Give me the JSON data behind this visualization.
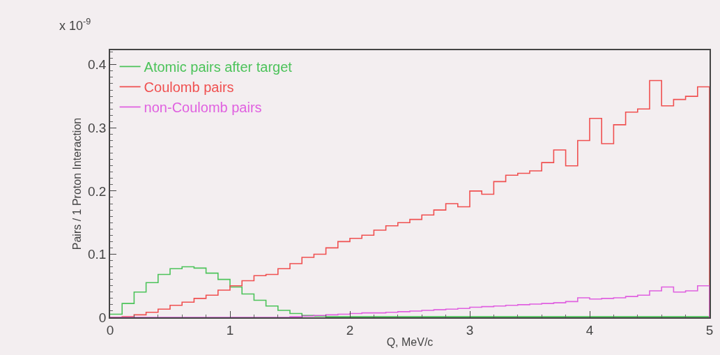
{
  "chart_data": {
    "type": "step",
    "xlabel": "Q, MeV/c",
    "ylabel": "Pairs / 1 Proton Interaction",
    "annotations": [
      "x 10$^{-9}$"
    ],
    "xlim": [
      0,
      5
    ],
    "ylim": [
      0,
      0.423
    ],
    "xticks": [
      0,
      1,
      2,
      3,
      4,
      5
    ],
    "yticks": [
      0,
      0.1,
      0.2,
      0.3,
      0.4
    ],
    "grid": false,
    "legend": "top left",
    "marker": "none",
    "line_style": "solid",
    "series": [
      {
        "name": "Atomic pairs after target",
        "color": "#4cc35a",
        "x": [
          0,
          0.1,
          0.2,
          0.3,
          0.4,
          0.5,
          0.6,
          0.7,
          0.8,
          0.9,
          1.0,
          1.1,
          1.2,
          1.3,
          1.4,
          1.5,
          1.6,
          1.7,
          1.8,
          1.9,
          5.0
        ],
        "values": [
          0.005,
          0.022,
          0.04,
          0.055,
          0.068,
          0.077,
          0.08,
          0.078,
          0.07,
          0.06,
          0.048,
          0.037,
          0.027,
          0.018,
          0.011,
          0.006,
          0.003,
          0.002,
          0.001,
          0.001,
          0.001
        ]
      },
      {
        "name": "Coulomb pairs",
        "color": "#f05050",
        "x": [
          0,
          0.1,
          0.2,
          0.3,
          0.4,
          0.5,
          0.6,
          0.7,
          0.8,
          0.9,
          1.0,
          1.1,
          1.2,
          1.3,
          1.4,
          1.5,
          1.6,
          1.7,
          1.8,
          1.9,
          2.0,
          2.1,
          2.2,
          2.3,
          2.4,
          2.5,
          2.6,
          2.7,
          2.8,
          2.9,
          3.0,
          3.1,
          3.2,
          3.3,
          3.4,
          3.5,
          3.6,
          3.7,
          3.8,
          3.9,
          4.0,
          4.1,
          4.2,
          4.3,
          4.4,
          4.5,
          4.6,
          4.7,
          4.8,
          4.9,
          5.0
        ],
        "values": [
          0,
          0.001,
          0.004,
          0.008,
          0.013,
          0.019,
          0.024,
          0.03,
          0.035,
          0.043,
          0.05,
          0.058,
          0.066,
          0.068,
          0.077,
          0.085,
          0.095,
          0.1,
          0.11,
          0.12,
          0.125,
          0.13,
          0.138,
          0.145,
          0.15,
          0.155,
          0.162,
          0.17,
          0.18,
          0.175,
          0.2,
          0.195,
          0.215,
          0.225,
          0.228,
          0.232,
          0.245,
          0.265,
          0.24,
          0.28,
          0.315,
          0.275,
          0.305,
          0.325,
          0.33,
          0.375,
          0.335,
          0.345,
          0.35,
          0.365,
          0
        ]
      },
      {
        "name": "non-Coulomb pairs",
        "color": "#e060e0",
        "x": [
          0,
          1.5,
          1.6,
          1.7,
          1.8,
          1.9,
          2.0,
          2.1,
          2.2,
          2.3,
          2.4,
          2.5,
          2.6,
          2.7,
          2.8,
          2.9,
          3.0,
          3.1,
          3.2,
          3.3,
          3.4,
          3.5,
          3.6,
          3.7,
          3.8,
          3.9,
          4.0,
          4.1,
          4.2,
          4.3,
          4.4,
          4.5,
          4.6,
          4.7,
          4.8,
          4.9,
          5.0
        ],
        "values": [
          0,
          0.001,
          0.002,
          0.003,
          0.004,
          0.005,
          0.006,
          0.007,
          0.007,
          0.008,
          0.009,
          0.01,
          0.011,
          0.012,
          0.013,
          0.014,
          0.016,
          0.017,
          0.018,
          0.019,
          0.02,
          0.021,
          0.022,
          0.023,
          0.025,
          0.031,
          0.029,
          0.03,
          0.031,
          0.033,
          0.035,
          0.042,
          0.048,
          0.04,
          0.042,
          0.05,
          0
        ]
      }
    ]
  }
}
